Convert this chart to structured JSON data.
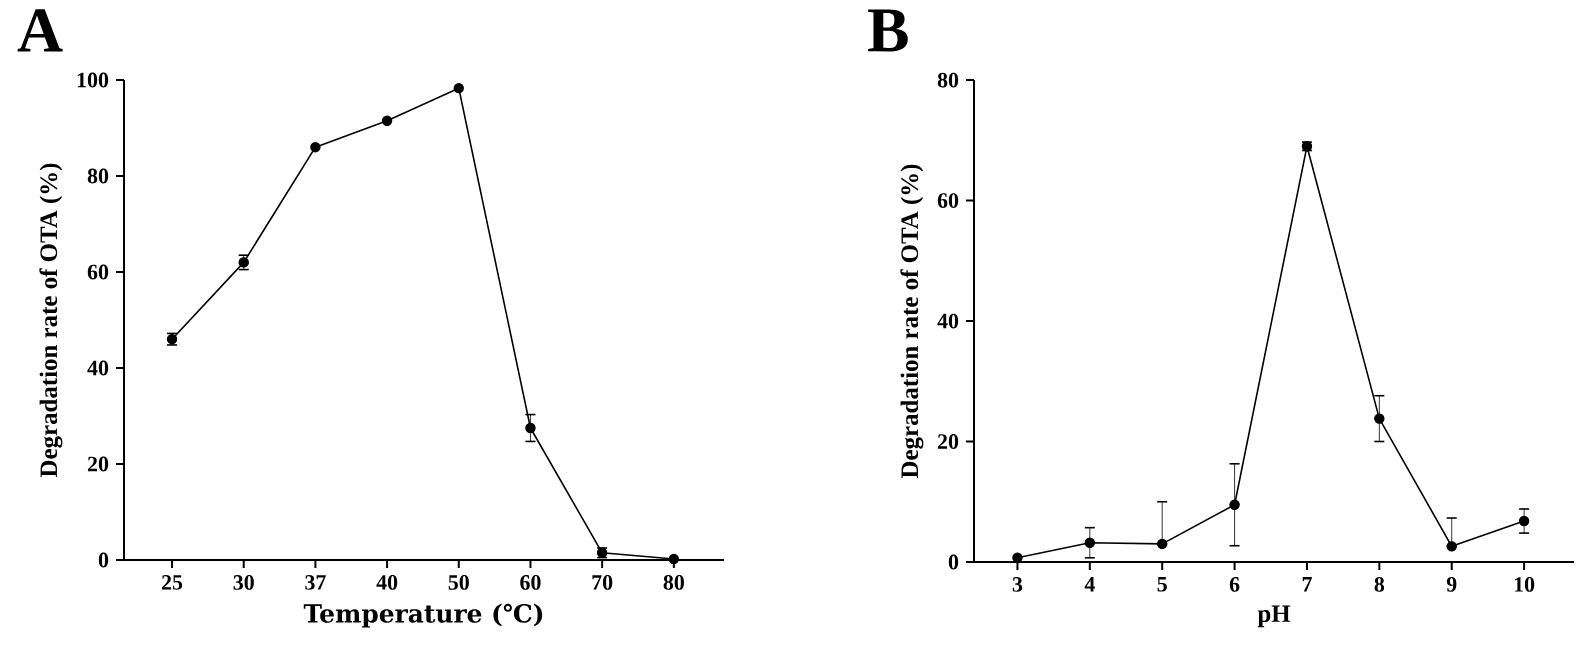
{
  "chart_data": [
    {
      "type": "line",
      "title": "A",
      "xlabel": "Temperature (℃)",
      "ylabel": "Degradation rate of OTA (%)",
      "categories": [
        "25",
        "30",
        "37",
        "40",
        "50",
        "60",
        "70",
        "80"
      ],
      "values": [
        46,
        62,
        86,
        91.5,
        98.3,
        27.5,
        1.5,
        0.2
      ],
      "errors": [
        1.2,
        1.5,
        null,
        null,
        null,
        2.8,
        1.0,
        null
      ],
      "color": "#000000",
      "marker": "circle",
      "ylim": [
        0,
        100
      ],
      "yticks": [
        0,
        20,
        40,
        60,
        80,
        100
      ]
    },
    {
      "type": "line",
      "title": "B",
      "xlabel": "pH",
      "ylabel": "Degradation rate of OTA (%)",
      "categories": [
        "3",
        "4",
        "5",
        "6",
        "7",
        "8",
        "9",
        "10"
      ],
      "values": [
        0.7,
        3.2,
        3.0,
        9.5,
        69,
        23.8,
        2.6,
        6.8
      ],
      "errors": [
        null,
        2.5,
        [
          3.0,
          10
        ],
        6.8,
        0.7,
        3.8,
        [
          2.6,
          7.3
        ],
        2.0
      ],
      "color": "#000000",
      "marker": "circle",
      "ylim": [
        0,
        80
      ],
      "yticks": [
        0,
        20,
        40,
        60,
        80
      ]
    }
  ]
}
